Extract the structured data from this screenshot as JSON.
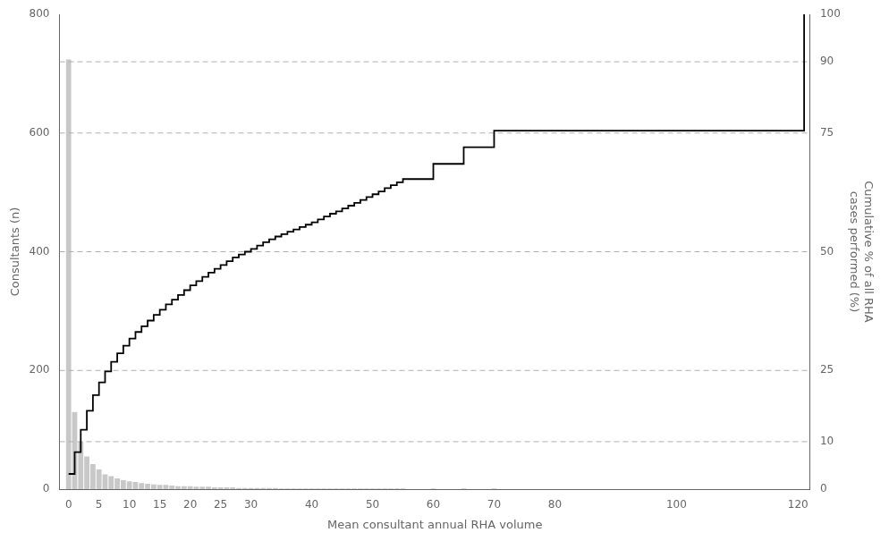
{
  "chart_data": {
    "type": "bar",
    "xlabel": "Mean consultant annual RHA volume",
    "ylabel": "Consultants (n)",
    "y2label": "Cumulative % of all RHA\ncases performed (%)",
    "xlim": [
      -1.5,
      122
    ],
    "xticks": [
      0,
      5,
      10,
      15,
      20,
      25,
      30,
      40,
      50,
      60,
      70,
      80,
      100,
      120
    ],
    "ylim": [
      0,
      800
    ],
    "yticks": [
      0,
      200,
      400,
      600,
      800
    ],
    "y2lim": [
      0,
      100
    ],
    "y2ticks": [
      0,
      10,
      25,
      50,
      75,
      90,
      100
    ],
    "grid": false,
    "series": [
      {
        "type": "bar",
        "color": "#c8c8c8",
        "x": [
          0,
          1,
          2,
          3,
          4,
          5,
          6,
          7,
          8,
          9,
          10,
          11,
          12,
          13,
          14,
          15,
          16,
          17,
          18,
          19,
          20,
          21,
          22,
          23,
          24,
          25,
          26,
          27,
          28,
          29,
          30,
          31,
          32,
          33,
          34,
          35,
          36,
          37,
          38,
          39,
          40,
          41,
          42,
          43,
          44,
          45,
          46,
          47,
          48,
          49,
          50,
          51,
          52,
          53,
          54,
          55,
          60,
          65,
          70
        ],
        "values": [
          724,
          130,
          80,
          55,
          42,
          33,
          25,
          22,
          18,
          15,
          13,
          12,
          10,
          9,
          8,
          7,
          7,
          6,
          5,
          5,
          5,
          4,
          4,
          4,
          3,
          3,
          3,
          3,
          2,
          2,
          2,
          2,
          2,
          2,
          2,
          1,
          1,
          1,
          1,
          1,
          1,
          1,
          1,
          1,
          1,
          1,
          1,
          1,
          1,
          1,
          1,
          1,
          1,
          1,
          1,
          1,
          1,
          1,
          1
        ]
      },
      {
        "type": "hline",
        "axis": "y2",
        "line_style": "dashed",
        "color": "#b0b0b0",
        "values": [
          10,
          25,
          50,
          75,
          90
        ]
      },
      {
        "type": "line",
        "axis": "y2",
        "line_style": "step",
        "color": "#000000",
        "x": [
          0,
          1,
          2,
          3,
          4,
          5,
          6,
          7,
          8,
          9,
          10,
          11,
          12,
          13,
          14,
          15,
          16,
          17,
          18,
          19,
          20,
          21,
          22,
          23,
          24,
          25,
          26,
          27,
          28,
          29,
          30,
          31,
          32,
          33,
          34,
          35,
          36,
          37,
          38,
          39,
          40,
          41,
          42,
          43,
          44,
          45,
          46,
          47,
          48,
          49,
          50,
          51,
          52,
          53,
          54,
          55,
          60,
          65,
          70,
          121
        ],
        "values": [
          3.2,
          7.8,
          12.5,
          16.5,
          19.8,
          22.5,
          24.8,
          26.8,
          28.6,
          30.2,
          31.7,
          33.1,
          34.3,
          35.5,
          36.7,
          37.8,
          38.9,
          39.9,
          40.9,
          41.9,
          42.9,
          43.8,
          44.7,
          45.6,
          46.4,
          47.2,
          48.0,
          48.8,
          49.4,
          50.0,
          50.6,
          51.3,
          52.0,
          52.6,
          53.2,
          53.7,
          54.2,
          54.7,
          55.2,
          55.7,
          56.2,
          56.8,
          57.4,
          58.0,
          58.5,
          59.1,
          59.7,
          60.3,
          60.9,
          61.5,
          62.1,
          62.7,
          63.4,
          64.0,
          64.6,
          65.3,
          68.5,
          72.0,
          75.5,
          100.0
        ]
      }
    ]
  }
}
